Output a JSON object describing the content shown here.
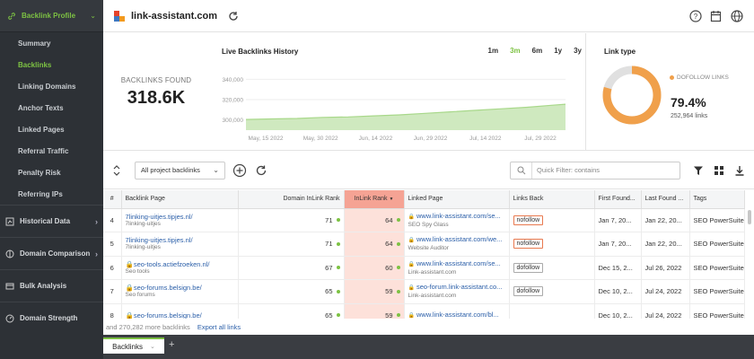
{
  "sidebar": {
    "top": {
      "label": "Backlink Profile"
    },
    "items": [
      {
        "label": "Summary"
      },
      {
        "label": "Backlinks"
      },
      {
        "label": "Linking Domains"
      },
      {
        "label": "Anchor Texts"
      },
      {
        "label": "Linked Pages"
      },
      {
        "label": "Referral Traffic"
      },
      {
        "label": "Penalty Risk"
      },
      {
        "label": "Referring IPs"
      }
    ],
    "sections": [
      {
        "label": "Historical Data",
        "icon": "history-icon"
      },
      {
        "label": "Domain Comparison",
        "icon": "compare-icon"
      },
      {
        "label": "Bulk Analysis",
        "icon": "bulk-icon"
      },
      {
        "label": "Domain Strength",
        "icon": "gauge-icon"
      }
    ]
  },
  "header": {
    "site": "link-assistant.com"
  },
  "stats": {
    "backlinks_label": "BACKLINKS FOUND",
    "backlinks_value": "318.6K"
  },
  "history": {
    "title": "Live Backlinks History",
    "ranges": [
      "1m",
      "3m",
      "6m",
      "1y",
      "3y"
    ],
    "active_range": "3m"
  },
  "chart_data": {
    "type": "area",
    "title": "Live Backlinks History",
    "x_ticks": [
      "May, 15 2022",
      "May, 30 2022",
      "Jun, 14 2022",
      "Jun, 29 2022",
      "Jul, 14 2022",
      "Jul, 29 2022"
    ],
    "y_ticks": [
      "340,000",
      "320,000",
      "300,000"
    ],
    "ylim": [
      290000,
      350000
    ],
    "x": [
      0,
      0.08,
      0.16,
      0.24,
      0.32,
      0.4,
      0.48,
      0.56,
      0.64,
      0.72,
      0.8,
      0.88,
      0.96,
      1.0
    ],
    "values": [
      300500,
      301000,
      301500,
      302500,
      303000,
      304000,
      305000,
      306500,
      308000,
      309500,
      311000,
      312500,
      314500,
      315500
    ],
    "color": "#a8d88a"
  },
  "linktype": {
    "title": "Link type",
    "legend": "DOFOLLOW LINKS",
    "percent": "79.4%",
    "count": "252,964 links",
    "fraction": 0.794,
    "color_main": "#f0a04b",
    "color_rest": "#e0e0e0"
  },
  "toolbar": {
    "select": "All project backlinks",
    "filter_placeholder": "Quick Filter: contains"
  },
  "table": {
    "headers": [
      "#",
      "Backlink Page",
      "Domain InLink Rank",
      "InLink Rank",
      "Linked Page",
      "Links Back",
      "First Found...",
      "Last Found ...",
      "Tags"
    ],
    "rows": [
      {
        "idx": "4",
        "page": "7linking-uitjes.tipjes.nl/",
        "page_sub": "7linking-uitjes",
        "lock": false,
        "dr": "71",
        "ir": "64",
        "linked": "www.link-assistant.com/se...",
        "linked_sub": "SEO Spy Glass",
        "back": "nofollow",
        "first": "Jan 7, 20...",
        "last": "Jan 22, 20...",
        "tags": "SEO PowerSuite ..."
      },
      {
        "idx": "5",
        "page": "7linking-uitjes.tipjes.nl/",
        "page_sub": "7linking-uitjes",
        "lock": false,
        "dr": "71",
        "ir": "64",
        "linked": "www.link-assistant.com/we...",
        "linked_sub": "Website Auditor",
        "back": "nofollow",
        "first": "Jan 7, 20...",
        "last": "Jan 22, 20...",
        "tags": "SEO PowerSuite ..."
      },
      {
        "idx": "6",
        "page": "seo-tools.actiefzoeken.nl/",
        "page_sub": "Seo tools",
        "lock": true,
        "dr": "67",
        "ir": "60",
        "linked": "www.link-assistant.com/se...",
        "linked_sub": "Link-assistant.com",
        "back": "dofollow",
        "first": "Dec 15, 2...",
        "last": "Jul 26, 2022",
        "tags": "SEO PowerSuite ..."
      },
      {
        "idx": "7",
        "page": "seo-forums.belsign.be/",
        "page_sub": "Seo forums",
        "lock": true,
        "dr": "65",
        "ir": "59",
        "linked": "seo-forum.link-assistant.co...",
        "linked_sub": "Link-assistant.com",
        "back": "dofollow",
        "first": "Dec 10, 2...",
        "last": "Jul 24, 2022",
        "tags": "SEO PowerSuite ..."
      },
      {
        "idx": "8",
        "page": "seo-forums.belsign.be/",
        "page_sub": "",
        "lock": true,
        "dr": "65",
        "ir": "59",
        "linked": "www.link-assistant.com/bl...",
        "linked_sub": "",
        "back": "",
        "first": "Dec 10, 2...",
        "last": "Jul 24, 2022",
        "tags": "SEO PowerSuite ..."
      }
    ]
  },
  "footer": {
    "more": "and 270,282 more backlinks",
    "export": "Export all links"
  },
  "bottom": {
    "tab": "Backlinks",
    "add": "+"
  }
}
